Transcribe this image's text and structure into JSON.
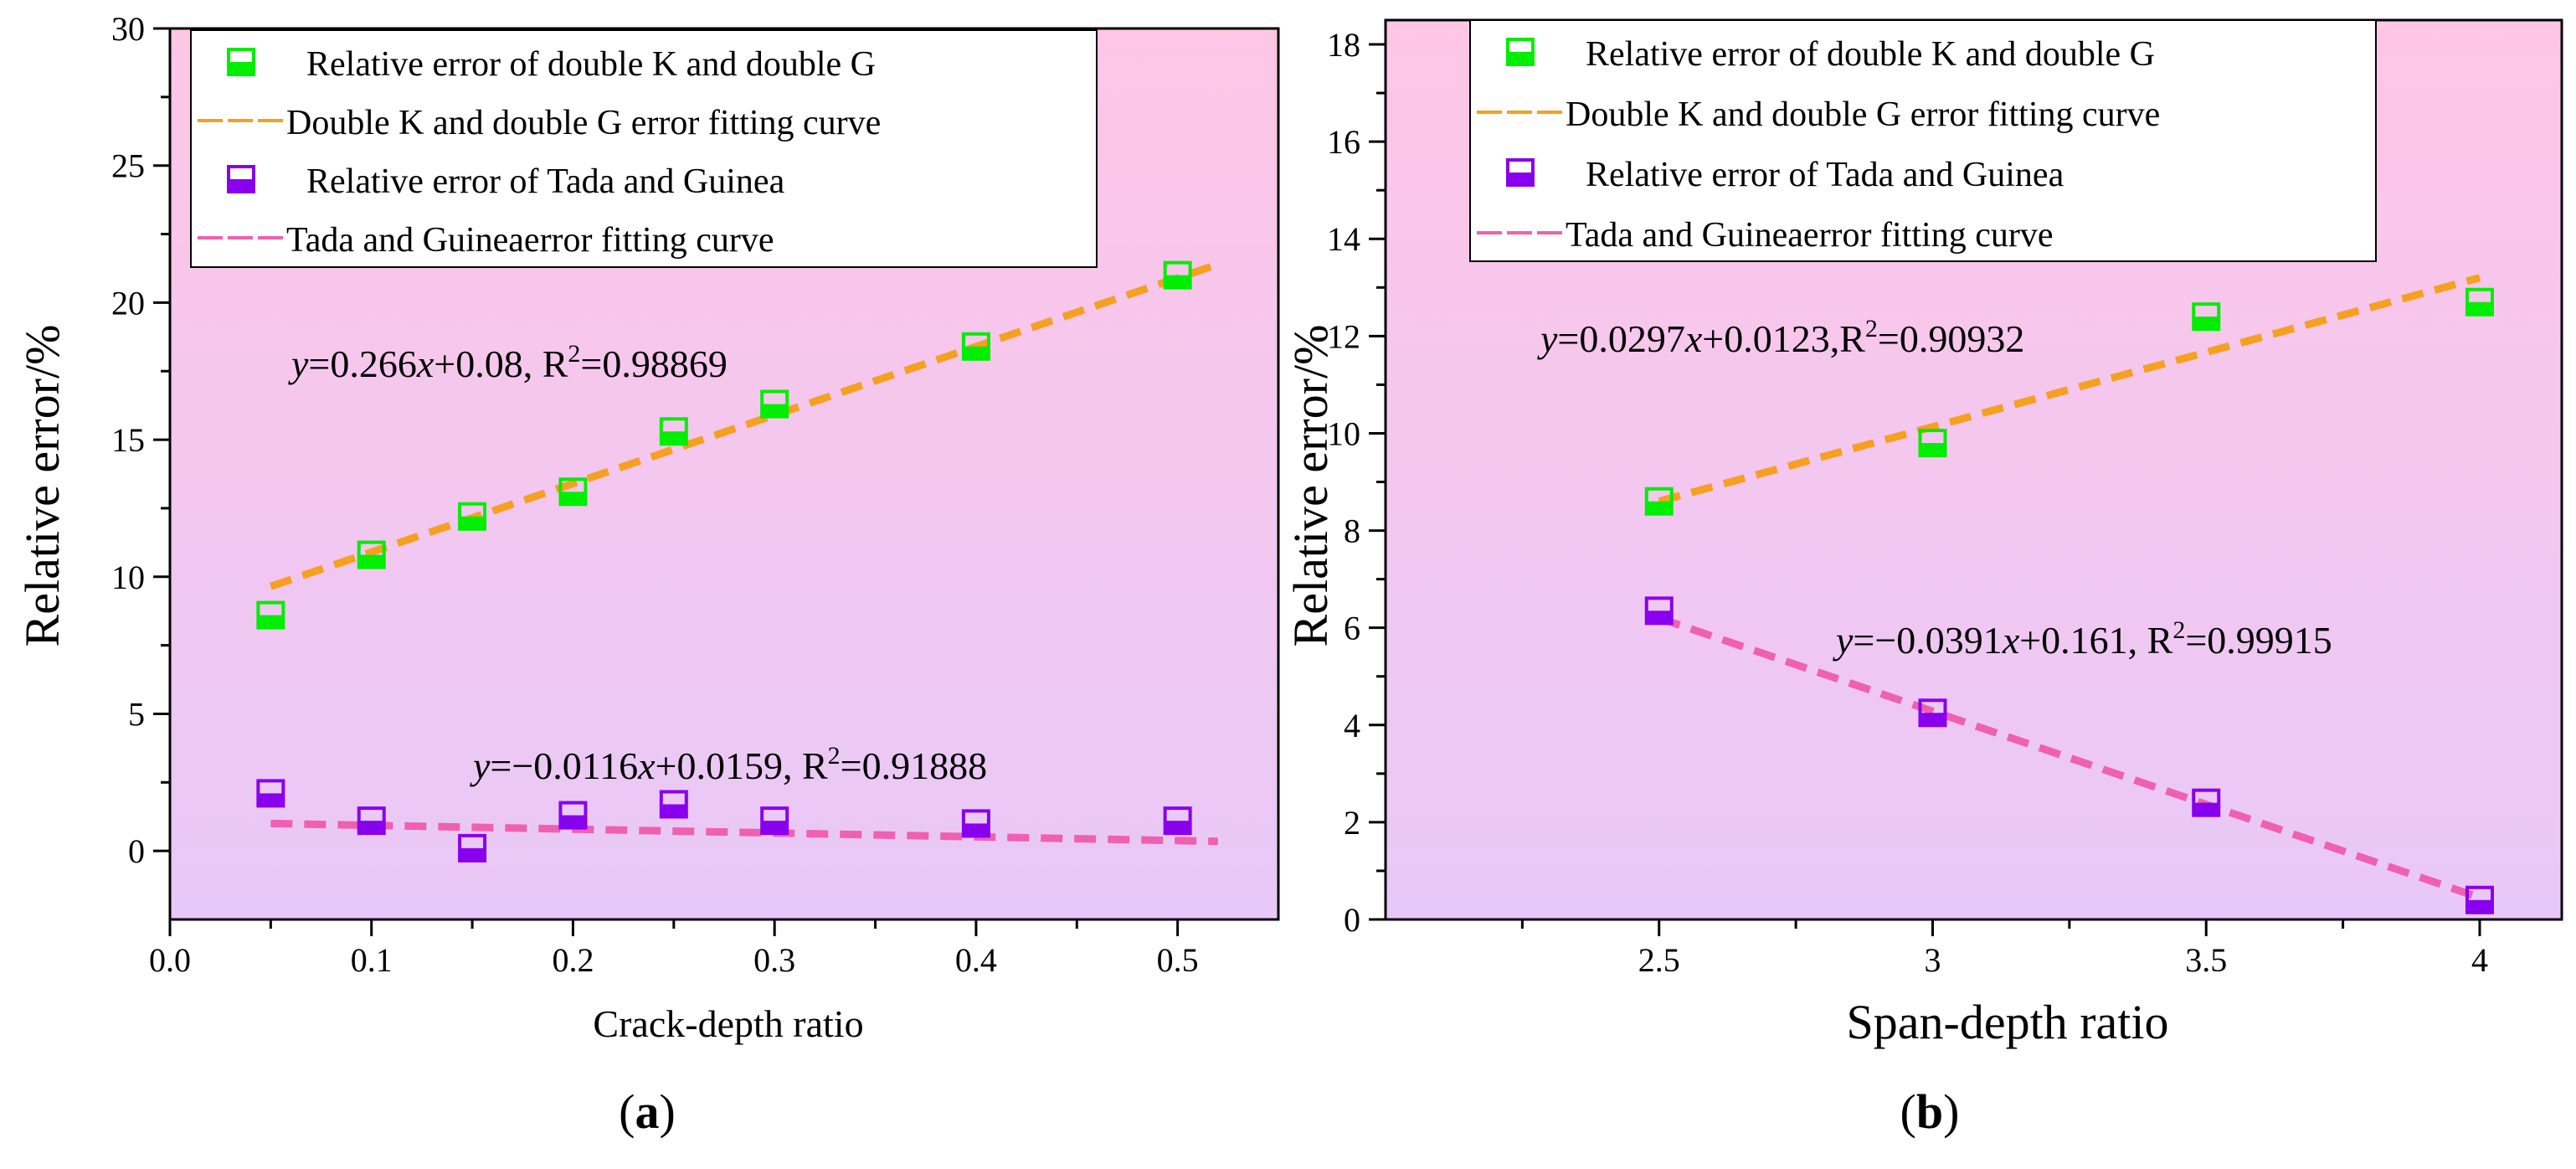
{
  "colors": {
    "green_marker": "#00ee00",
    "purple_marker": "#8800ee",
    "orange_fit": "#f5a020",
    "pink_fit": "#f060b0",
    "bg_top": "#ffc6e6",
    "bg_bottom": "#e8c8f8"
  },
  "marker_icon": "half-filled-square",
  "chart_data": [
    {
      "type": "scatter",
      "panel_label": "a",
      "xlabel": "Crack-depth  ratio",
      "ylabel": "Relative error/%",
      "xlim": [
        0,
        0.55
      ],
      "ylim": [
        -2.5,
        30
      ],
      "xticks": [
        "0.0",
        "0.1",
        "0.2",
        "0.3",
        "0.4",
        "0.5"
      ],
      "xtick_values": [
        0,
        0.1,
        0.2,
        0.3,
        0.4,
        0.5
      ],
      "yticks": [
        "0",
        "5",
        "10",
        "15",
        "20",
        "25",
        "30"
      ],
      "ytick_values": [
        0,
        5,
        10,
        15,
        20,
        25,
        30
      ],
      "legend": [
        "Relative error of  double K and double G",
        "Double K and double G  error fitting curve",
        "Relative error of Tada and Guinea",
        "Tada and Guineaerror fitting curve"
      ],
      "series": [
        {
          "name": "Relative error of  double K and double G",
          "kind": "points",
          "x": [
            0.05,
            0.1,
            0.15,
            0.2,
            0.25,
            0.3,
            0.4,
            0.5
          ],
          "y": [
            8.6,
            10.8,
            12.2,
            13.1,
            15.3,
            16.3,
            18.4,
            21.0
          ]
        },
        {
          "name": "Double K and double G  error fitting curve",
          "kind": "fit",
          "x": [
            0.05,
            0.52
          ],
          "y": [
            9.65,
            21.4
          ]
        },
        {
          "name": "Relative error of Tada and Guinea",
          "kind": "points",
          "x": [
            0.05,
            0.1,
            0.15,
            0.2,
            0.25,
            0.3,
            0.4,
            0.5
          ],
          "y": [
            2.1,
            1.1,
            0.1,
            1.3,
            1.7,
            1.1,
            1.0,
            1.1
          ]
        },
        {
          "name": "Tada and Guineaerror fitting curve",
          "kind": "fit",
          "x": [
            0.05,
            0.52
          ],
          "y": [
            1.0,
            0.35
          ]
        }
      ],
      "annotations": [
        {
          "var": "y",
          "mid": "=0.266",
          "var2": "x",
          "rest": "+0.08, R",
          "sup": "2",
          "tail": "=0.98869"
        },
        {
          "var": "y",
          "mid": "=−0.0116",
          "var2": "x",
          "rest": "+0.0159, R",
          "sup": "2",
          "tail": "=0.91888"
        }
      ]
    },
    {
      "type": "scatter",
      "panel_label": "b",
      "xlabel": "Span-depth ratio",
      "ylabel": "Relative error/%",
      "xlim": [
        2,
        4.15
      ],
      "ylim": [
        0,
        18.5
      ],
      "xticks": [
        "2.5",
        "3",
        "3.5",
        "4"
      ],
      "xtick_values": [
        2.5,
        3,
        3.5,
        4
      ],
      "xminor_values": [
        2.25,
        2.75,
        3.25,
        3.75
      ],
      "yticks": [
        "0",
        "2",
        "4",
        "6",
        "8",
        "10",
        "12",
        "14",
        "16",
        "18"
      ],
      "ytick_values": [
        0,
        2,
        4,
        6,
        8,
        10,
        12,
        14,
        16,
        18
      ],
      "legend": [
        "Relative error of  double K and double G",
        "Double K and double G  error fitting curve",
        "Relative error of Tada and Guinea",
        "Tada and Guineaerror fitting curve"
      ],
      "series": [
        {
          "name": "Relative error of  double K and double G",
          "kind": "points",
          "x": [
            2.5,
            3,
            3.5,
            4
          ],
          "y": [
            8.6,
            9.8,
            12.4,
            12.7
          ]
        },
        {
          "name": "Double K and double G  error fitting curve",
          "kind": "fit",
          "x": [
            2.5,
            4
          ],
          "y": [
            8.6,
            13.2
          ]
        },
        {
          "name": "Relative error of Tada and Guinea",
          "kind": "points",
          "x": [
            2.5,
            3,
            3.5,
            4
          ],
          "y": [
            6.35,
            4.25,
            2.4,
            0.4
          ]
        },
        {
          "name": "Tada and Guineaerror fitting curve",
          "kind": "fit",
          "x": [
            2.5,
            4
          ],
          "y": [
            6.2,
            0.45
          ]
        }
      ],
      "annotations": [
        {
          "var": "y",
          "mid": "=0.0297",
          "var2": "x",
          "rest": "+0.0123,R",
          "sup": "2",
          "tail": "=0.90932"
        },
        {
          "var": "y",
          "mid": "=−0.0391",
          "var2": "x",
          "rest": "+0.161, R",
          "sup": "2",
          "tail": "=0.99915"
        }
      ]
    }
  ]
}
